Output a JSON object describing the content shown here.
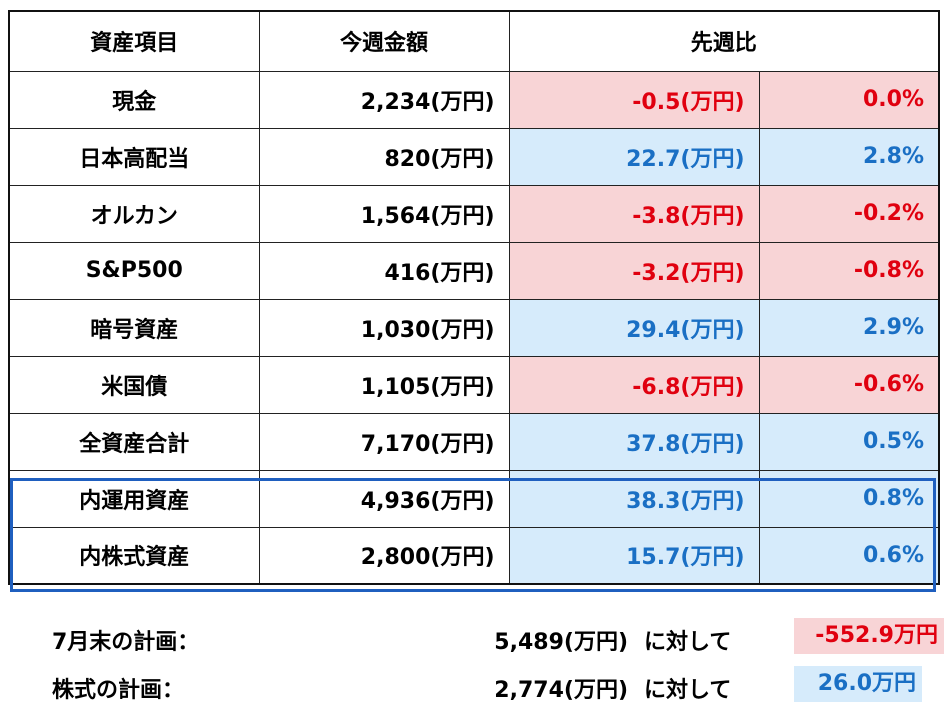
{
  "table": {
    "headers": {
      "item": "資産項目",
      "amount": "今週金額",
      "change": "先週比"
    },
    "rows": [
      {
        "name": "現金",
        "amount": "2,234(万円)",
        "diff": "-0.5(万円)",
        "pct": "0.0%",
        "trend": "neg"
      },
      {
        "name": "日本高配当",
        "amount": "820(万円)",
        "diff": "22.7(万円)",
        "pct": "2.8%",
        "trend": "pos"
      },
      {
        "name": "オルカン",
        "amount": "1,564(万円)",
        "diff": "-3.8(万円)",
        "pct": "-0.2%",
        "trend": "neg"
      },
      {
        "name": "S&P500",
        "amount": "416(万円)",
        "diff": "-3.2(万円)",
        "pct": "-0.8%",
        "trend": "neg"
      },
      {
        "name": "暗号資産",
        "amount": "1,030(万円)",
        "diff": "29.4(万円)",
        "pct": "2.9%",
        "trend": "pos"
      },
      {
        "name": "米国債",
        "amount": "1,105(万円)",
        "diff": "-6.8(万円)",
        "pct": "-0.6%",
        "trend": "neg"
      },
      {
        "name": "全資産合計",
        "amount": "7,170(万円)",
        "diff": "37.8(万円)",
        "pct": "0.5%",
        "trend": "pos"
      },
      {
        "name": "内運用資産",
        "amount": "4,936(万円)",
        "diff": "38.3(万円)",
        "pct": "0.8%",
        "trend": "pos"
      },
      {
        "name": "内株式資産",
        "amount": "2,800(万円)",
        "diff": "15.7(万円)",
        "pct": "0.6%",
        "trend": "pos"
      }
    ]
  },
  "plans": [
    {
      "label": "7月末の計画：",
      "target": "5,489(万円)",
      "suffix": "に対して",
      "diff": "-552.9万円",
      "trend": "neg"
    },
    {
      "label": "株式の計画：",
      "target": "2,774(万円)",
      "suffix": "に対して",
      "diff": "26.0万円",
      "trend": "pos"
    }
  ],
  "colors": {
    "negative_text": "#e0000f",
    "negative_bg": "#f8d4d6",
    "positive_text": "#1a6fc4",
    "positive_bg": "#d6ebfb",
    "highlight_border": "#1f5fbf"
  }
}
